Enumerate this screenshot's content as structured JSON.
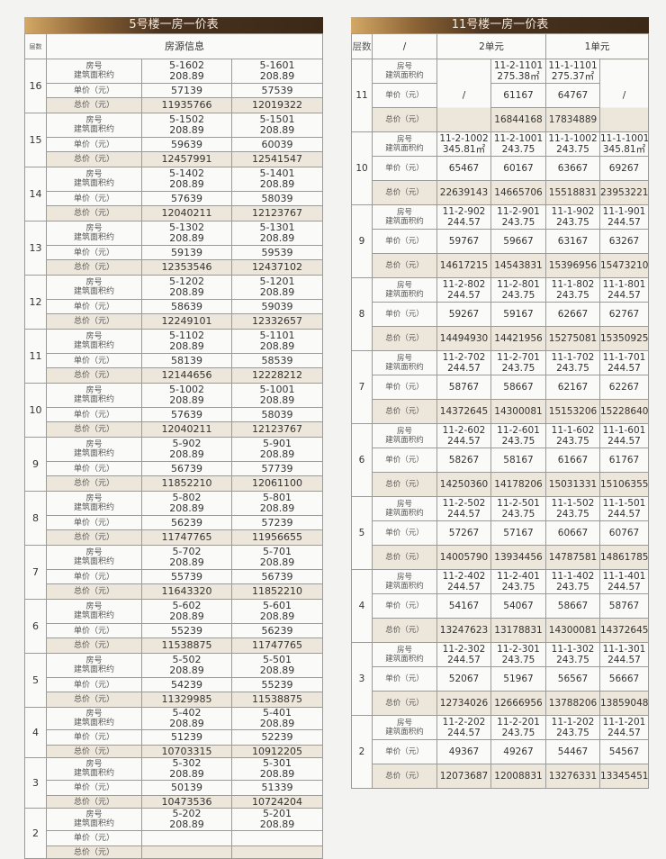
{
  "labels": {
    "floor": "层数",
    "room_no": "房号",
    "area": "建筑面积约",
    "unit_price": "单价（元）",
    "total_price": "总价（元）",
    "slash": "/"
  },
  "colors": {
    "title_bar": "#3b2816",
    "title_accent": "#d4a866",
    "total_row_bg": "#ede6da",
    "border": "#9a9a98"
  },
  "building5": {
    "title": "5号楼一房一价表",
    "header_info": "房源信息",
    "floors": [
      {
        "floor": "16",
        "units": [
          {
            "room": "5-1602",
            "area": "208.89",
            "unit_price": "57139",
            "total": "11935766"
          },
          {
            "room": "5-1601",
            "area": "208.89",
            "unit_price": "57539",
            "total": "12019322"
          }
        ]
      },
      {
        "floor": "15",
        "units": [
          {
            "room": "5-1502",
            "area": "208.89",
            "unit_price": "59639",
            "total": "12457991"
          },
          {
            "room": "5-1501",
            "area": "208.89",
            "unit_price": "60039",
            "total": "12541547"
          }
        ]
      },
      {
        "floor": "14",
        "units": [
          {
            "room": "5-1402",
            "area": "208.89",
            "unit_price": "57639",
            "total": "12040211"
          },
          {
            "room": "5-1401",
            "area": "208.89",
            "unit_price": "58039",
            "total": "12123767"
          }
        ]
      },
      {
        "floor": "13",
        "units": [
          {
            "room": "5-1302",
            "area": "208.89",
            "unit_price": "59139",
            "total": "12353546"
          },
          {
            "room": "5-1301",
            "area": "208.89",
            "unit_price": "59539",
            "total": "12437102"
          }
        ]
      },
      {
        "floor": "12",
        "units": [
          {
            "room": "5-1202",
            "area": "208.89",
            "unit_price": "58639",
            "total": "12249101"
          },
          {
            "room": "5-1201",
            "area": "208.89",
            "unit_price": "59039",
            "total": "12332657"
          }
        ]
      },
      {
        "floor": "11",
        "units": [
          {
            "room": "5-1102",
            "area": "208.89",
            "unit_price": "58139",
            "total": "12144656"
          },
          {
            "room": "5-1101",
            "area": "208.89",
            "unit_price": "58539",
            "total": "12228212"
          }
        ]
      },
      {
        "floor": "10",
        "units": [
          {
            "room": "5-1002",
            "area": "208.89",
            "unit_price": "57639",
            "total": "12040211"
          },
          {
            "room": "5-1001",
            "area": "208.89",
            "unit_price": "58039",
            "total": "12123767"
          }
        ]
      },
      {
        "floor": "9",
        "units": [
          {
            "room": "5-902",
            "area": "208.89",
            "unit_price": "56739",
            "total": "11852210"
          },
          {
            "room": "5-901",
            "area": "208.89",
            "unit_price": "57739",
            "total": "12061100"
          }
        ]
      },
      {
        "floor": "8",
        "units": [
          {
            "room": "5-802",
            "area": "208.89",
            "unit_price": "56239",
            "total": "11747765"
          },
          {
            "room": "5-801",
            "area": "208.89",
            "unit_price": "57239",
            "total": "11956655"
          }
        ]
      },
      {
        "floor": "7",
        "units": [
          {
            "room": "5-702",
            "area": "208.89",
            "unit_price": "55739",
            "total": "11643320"
          },
          {
            "room": "5-701",
            "area": "208.89",
            "unit_price": "56739",
            "total": "11852210"
          }
        ]
      },
      {
        "floor": "6",
        "units": [
          {
            "room": "5-602",
            "area": "208.89",
            "unit_price": "55239",
            "total": "11538875"
          },
          {
            "room": "5-601",
            "area": "208.89",
            "unit_price": "56239",
            "total": "11747765"
          }
        ]
      },
      {
        "floor": "5",
        "units": [
          {
            "room": "5-502",
            "area": "208.89",
            "unit_price": "54239",
            "total": "11329985"
          },
          {
            "room": "5-501",
            "area": "208.89",
            "unit_price": "55239",
            "total": "11538875"
          }
        ]
      },
      {
        "floor": "4",
        "units": [
          {
            "room": "5-402",
            "area": "208.89",
            "unit_price": "51239",
            "total": "10703315"
          },
          {
            "room": "5-401",
            "area": "208.89",
            "unit_price": "52239",
            "total": "10912205"
          }
        ]
      },
      {
        "floor": "3",
        "units": [
          {
            "room": "5-302",
            "area": "208.89",
            "unit_price": "50139",
            "total": "10473536"
          },
          {
            "room": "5-301",
            "area": "208.89",
            "unit_price": "51339",
            "total": "10724204"
          }
        ]
      },
      {
        "floor": "2",
        "units": [
          {
            "room": "5-202",
            "area": "208.89"
          },
          {
            "room": "5-201",
            "area": "208.89"
          }
        ]
      }
    ]
  },
  "building11": {
    "title": "11号楼一房一价表",
    "header_units": [
      "2单元",
      "1单元"
    ],
    "floors": [
      {
        "floor": "11",
        "units": [
          null,
          {
            "room": "11-2-1101",
            "area": "275.38㎡",
            "unit_price": "61167",
            "total": "16844168"
          },
          {
            "room": "11-1-1101",
            "area": "275.37㎡",
            "unit_price": "64767",
            "total": "17834889"
          },
          null
        ]
      },
      {
        "floor": "10",
        "units": [
          {
            "room": "11-2-1002",
            "area": "345.81㎡",
            "unit_price": "65467",
            "total": "22639143"
          },
          {
            "room": "11-2-1001",
            "area": "243.75",
            "unit_price": "60167",
            "total": "14665706"
          },
          {
            "room": "11-1-1002",
            "area": "243.75",
            "unit_price": "63667",
            "total": "15518831"
          },
          {
            "room": "11-1-1001",
            "area": "345.81㎡",
            "unit_price": "69267",
            "total": "23953221"
          }
        ]
      },
      {
        "floor": "9",
        "units": [
          {
            "room": "11-2-902",
            "area": "244.57",
            "unit_price": "59767",
            "total": "14617215"
          },
          {
            "room": "11-2-901",
            "area": "243.75",
            "unit_price": "59667",
            "total": "14543831"
          },
          {
            "room": "11-1-902",
            "area": "243.75",
            "unit_price": "63167",
            "total": "15396956"
          },
          {
            "room": "11-1-901",
            "area": "244.57",
            "unit_price": "63267",
            "total": "15473210"
          }
        ]
      },
      {
        "floor": "8",
        "units": [
          {
            "room": "11-2-802",
            "area": "244.57",
            "unit_price": "59267",
            "total": "14494930"
          },
          {
            "room": "11-2-801",
            "area": "243.75",
            "unit_price": "59167",
            "total": "14421956"
          },
          {
            "room": "11-1-802",
            "area": "243.75",
            "unit_price": "62667",
            "total": "15275081"
          },
          {
            "room": "11-1-801",
            "area": "244.57",
            "unit_price": "62767",
            "total": "15350925"
          }
        ]
      },
      {
        "floor": "7",
        "units": [
          {
            "room": "11-2-702",
            "area": "244.57",
            "unit_price": "58767",
            "total": "14372645"
          },
          {
            "room": "11-2-701",
            "area": "243.75",
            "unit_price": "58667",
            "total": "14300081"
          },
          {
            "room": "11-1-702",
            "area": "243.75",
            "unit_price": "62167",
            "total": "15153206"
          },
          {
            "room": "11-1-701",
            "area": "244.57",
            "unit_price": "62267",
            "total": "15228640"
          }
        ]
      },
      {
        "floor": "6",
        "units": [
          {
            "room": "11-2-602",
            "area": "244.57",
            "unit_price": "58267",
            "total": "14250360"
          },
          {
            "room": "11-2-601",
            "area": "243.75",
            "unit_price": "58167",
            "total": "14178206"
          },
          {
            "room": "11-1-602",
            "area": "243.75",
            "unit_price": "61667",
            "total": "15031331"
          },
          {
            "room": "11-1-601",
            "area": "244.57",
            "unit_price": "61767",
            "total": "15106355"
          }
        ]
      },
      {
        "floor": "5",
        "units": [
          {
            "room": "11-2-502",
            "area": "244.57",
            "unit_price": "57267",
            "total": "14005790"
          },
          {
            "room": "11-2-501",
            "area": "243.75",
            "unit_price": "57167",
            "total": "13934456"
          },
          {
            "room": "11-1-502",
            "area": "243.75",
            "unit_price": "60667",
            "total": "14787581"
          },
          {
            "room": "11-1-501",
            "area": "244.57",
            "unit_price": "60767",
            "total": "14861785"
          }
        ]
      },
      {
        "floor": "4",
        "units": [
          {
            "room": "11-2-402",
            "area": "244.57",
            "unit_price": "54167",
            "total": "13247623"
          },
          {
            "room": "11-2-401",
            "area": "243.75",
            "unit_price": "54067",
            "total": "13178831"
          },
          {
            "room": "11-1-402",
            "area": "243.75",
            "unit_price": "58667",
            "total": "14300081"
          },
          {
            "room": "11-1-401",
            "area": "244.57",
            "unit_price": "58767",
            "total": "14372645"
          }
        ]
      },
      {
        "floor": "3",
        "units": [
          {
            "room": "11-2-302",
            "area": "244.57",
            "unit_price": "52067",
            "total": "12734026"
          },
          {
            "room": "11-2-301",
            "area": "243.75",
            "unit_price": "51967",
            "total": "12666956"
          },
          {
            "room": "11-1-302",
            "area": "243.75",
            "unit_price": "56567",
            "total": "13788206"
          },
          {
            "room": "11-1-301",
            "area": "244.57",
            "unit_price": "56667",
            "total": "13859048"
          }
        ]
      },
      {
        "floor": "2",
        "units": [
          {
            "room": "11-2-202",
            "area": "244.57",
            "unit_price": "49367",
            "total": "12073687"
          },
          {
            "room": "11-2-201",
            "area": "243.75",
            "unit_price": "49267",
            "total": "12008831"
          },
          {
            "room": "11-1-202",
            "area": "243.75",
            "unit_price": "54467",
            "total": "13276331"
          },
          {
            "room": "11-1-201",
            "area": "244.57",
            "unit_price": "54567",
            "total": "13345451"
          }
        ]
      }
    ]
  }
}
